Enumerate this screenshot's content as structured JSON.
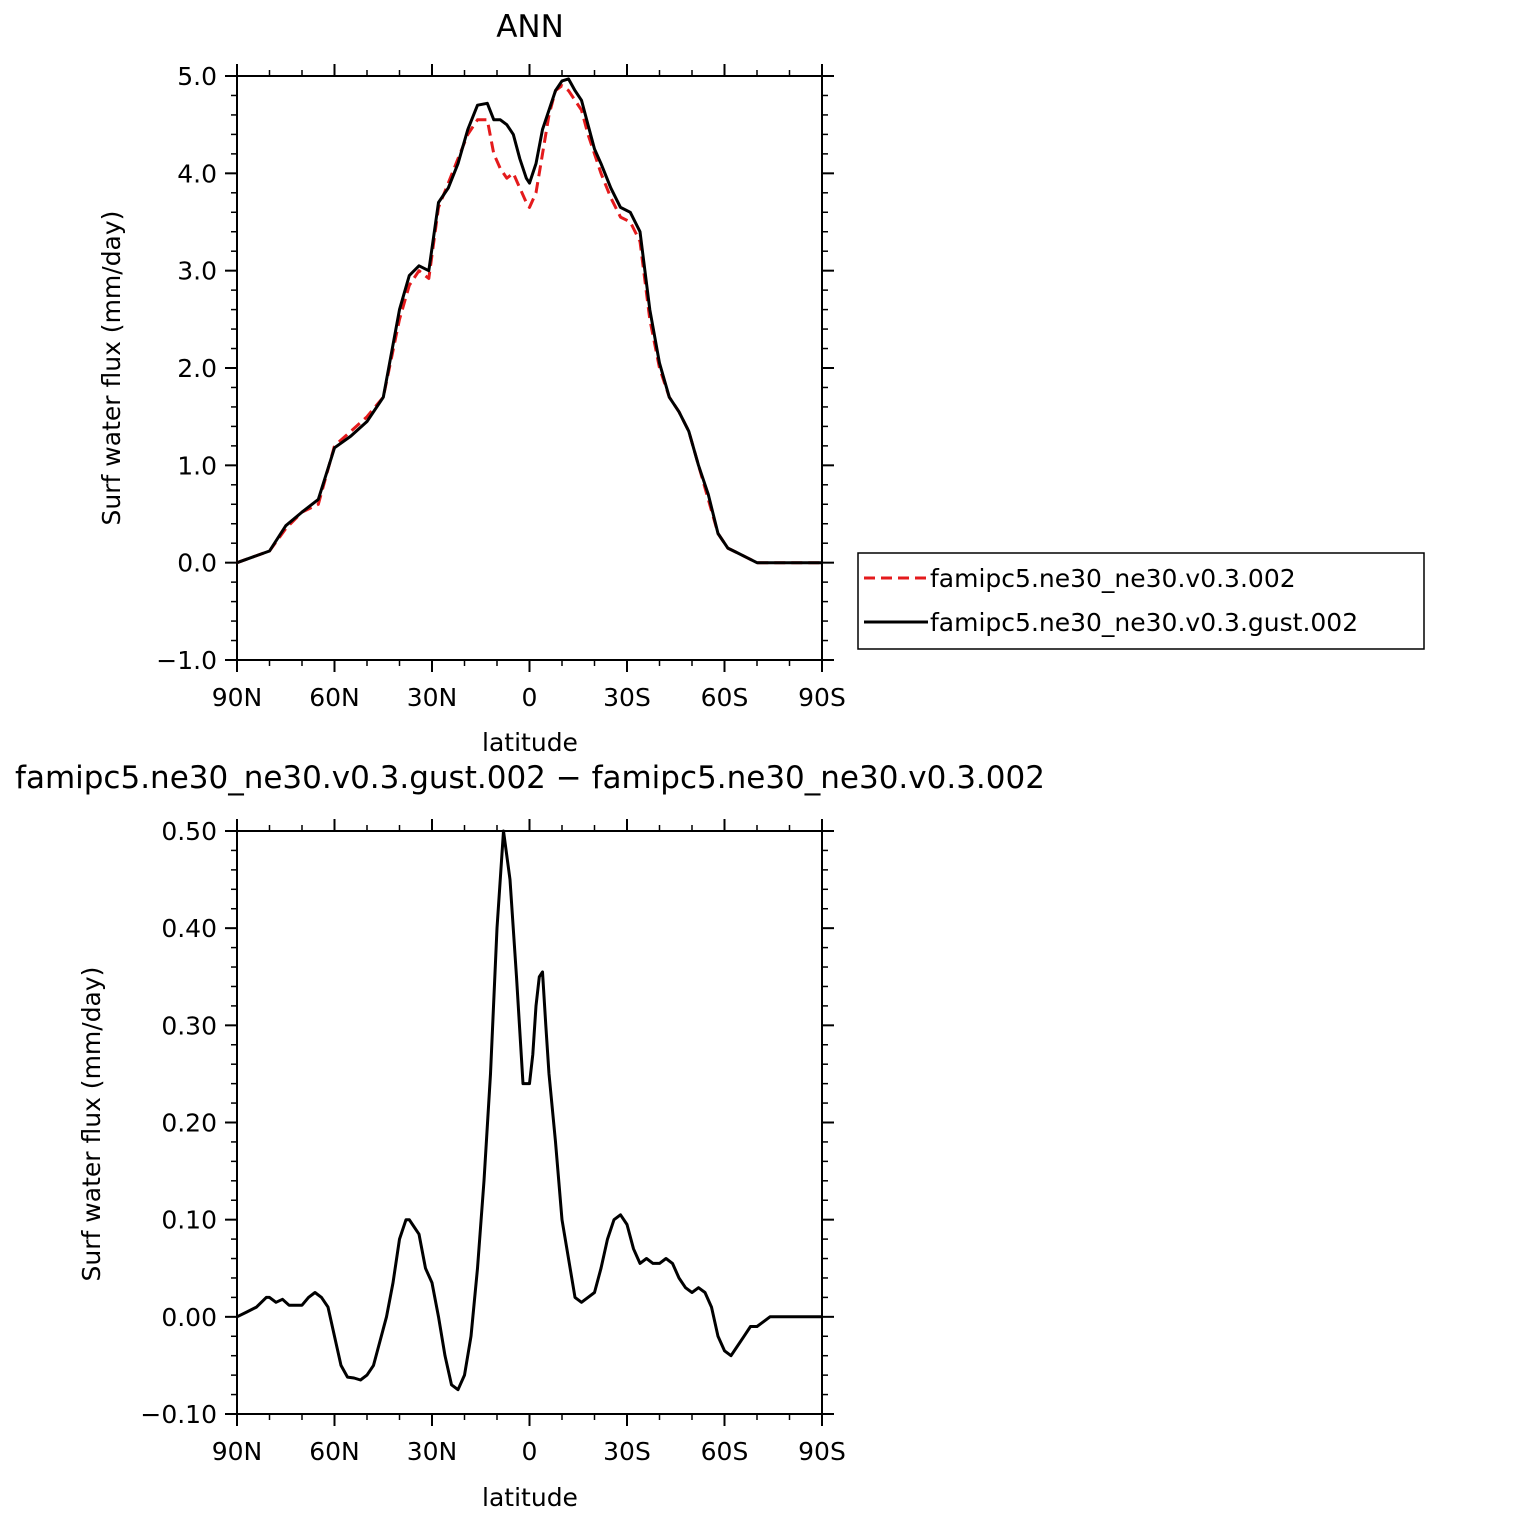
{
  "chart_data": [
    {
      "type": "line",
      "title": "ANN",
      "xlabel": "latitude",
      "ylabel": "Surf water flux (mm/day)",
      "xlim": [
        90,
        -90
      ],
      "ylim": [
        -1.0,
        5.0
      ],
      "x_tick_values": [
        90,
        60,
        30,
        0,
        -30,
        -60,
        -90
      ],
      "x_tick_labels": [
        "90N",
        "60N",
        "30N",
        "0",
        "30S",
        "60S",
        "90S"
      ],
      "y_tick_values": [
        -1.0,
        0.0,
        1.0,
        2.0,
        3.0,
        4.0,
        5.0
      ],
      "y_tick_labels": [
        "−1.0",
        "0.0",
        "1.0",
        "2.0",
        "3.0",
        "4.0",
        "5.0"
      ],
      "legend_position": "right",
      "series": [
        {
          "name": "famipc5.ne30_ne30.v0.3.002",
          "color": "#e41a1c",
          "dash": "dashed",
          "x": [
            90,
            85,
            80,
            75,
            70,
            65,
            60,
            55,
            50,
            45,
            40,
            37,
            34,
            31,
            28,
            25,
            22,
            19,
            16,
            13,
            11,
            9,
            7,
            5,
            3,
            1,
            0,
            -2,
            -4,
            -6,
            -8,
            -10,
            -12,
            -14,
            -16,
            -18,
            -20,
            -22,
            -25,
            -28,
            -31,
            -34,
            -37,
            -40,
            -43,
            -46,
            -49,
            -52,
            -55,
            -58,
            -61,
            -64,
            -67,
            -70,
            -73,
            -76,
            -79,
            -82,
            -85,
            -88,
            -90
          ],
          "y": [
            0.0,
            0.06,
            0.12,
            0.35,
            0.52,
            0.6,
            1.2,
            1.35,
            1.5,
            1.7,
            2.5,
            2.85,
            3.0,
            2.92,
            3.65,
            3.9,
            4.15,
            4.4,
            4.55,
            4.55,
            4.2,
            4.05,
            3.95,
            4.0,
            3.85,
            3.7,
            3.65,
            3.8,
            4.2,
            4.6,
            4.85,
            4.9,
            4.85,
            4.75,
            4.65,
            4.4,
            4.2,
            4.0,
            3.75,
            3.55,
            3.5,
            3.3,
            2.5,
            2.0,
            1.7,
            1.55,
            1.35,
            1.0,
            0.65,
            0.3,
            0.15,
            0.1,
            0.05,
            0.0,
            0.0,
            0.0,
            0.0,
            0.0,
            0.0,
            0.0,
            0.0
          ]
        },
        {
          "name": "famipc5.ne30_ne30.v0.3.gust.002",
          "color": "#000000",
          "dash": "solid",
          "x": [
            90,
            85,
            80,
            75,
            70,
            65,
            60,
            55,
            50,
            45,
            40,
            37,
            34,
            31,
            28,
            25,
            22,
            19,
            16,
            13,
            11,
            9,
            7,
            5,
            3,
            1,
            0,
            -2,
            -4,
            -6,
            -8,
            -10,
            -12,
            -14,
            -16,
            -18,
            -20,
            -22,
            -25,
            -28,
            -31,
            -34,
            -37,
            -40,
            -43,
            -46,
            -49,
            -52,
            -55,
            -58,
            -61,
            -64,
            -67,
            -70,
            -73,
            -76,
            -79,
            -82,
            -85,
            -88,
            -90
          ],
          "y": [
            0.0,
            0.06,
            0.12,
            0.38,
            0.52,
            0.65,
            1.18,
            1.3,
            1.45,
            1.7,
            2.6,
            2.95,
            3.05,
            3.0,
            3.7,
            3.85,
            4.1,
            4.45,
            4.7,
            4.72,
            4.55,
            4.55,
            4.5,
            4.4,
            4.15,
            3.95,
            3.9,
            4.1,
            4.45,
            4.65,
            4.85,
            4.95,
            4.97,
            4.85,
            4.75,
            4.5,
            4.25,
            4.1,
            3.85,
            3.65,
            3.6,
            3.4,
            2.6,
            2.05,
            1.7,
            1.55,
            1.35,
            1.0,
            0.7,
            0.3,
            0.15,
            0.1,
            0.05,
            0.0,
            0.0,
            0.0,
            0.0,
            0.0,
            0.0,
            0.0,
            0.0
          ]
        }
      ]
    },
    {
      "type": "line",
      "title": "famipc5.ne30_ne30.v0.3.gust.002 − famipc5.ne30_ne30.v0.3.002",
      "xlabel": "latitude",
      "ylabel": "Surf water flux (mm/day)",
      "xlim": [
        90,
        -90
      ],
      "ylim": [
        -0.1,
        0.5
      ],
      "x_tick_values": [
        90,
        60,
        30,
        0,
        -30,
        -60,
        -90
      ],
      "x_tick_labels": [
        "90N",
        "60N",
        "30N",
        "0",
        "30S",
        "60S",
        "90S"
      ],
      "y_tick_values": [
        -0.1,
        0.0,
        0.1,
        0.2,
        0.3,
        0.4,
        0.5
      ],
      "y_tick_labels": [
        "−0.10",
        "0.00",
        "0.10",
        "0.20",
        "0.30",
        "0.40",
        "0.50"
      ],
      "series": [
        {
          "color": "#000000",
          "dash": "solid",
          "x": [
            90,
            87,
            84,
            81,
            80,
            78,
            76,
            74,
            72,
            70,
            68,
            66,
            64,
            62,
            60,
            58,
            56,
            54,
            52,
            50,
            48,
            46,
            44,
            42,
            40,
            38,
            37,
            36,
            34,
            32,
            30,
            28,
            26,
            24,
            22,
            20,
            18,
            16,
            14,
            12,
            10,
            8,
            6,
            4,
            2,
            0,
            -1,
            -2,
            -3,
            -4,
            -5,
            -6,
            -8,
            -10,
            -12,
            -14,
            -16,
            -18,
            -20,
            -22,
            -24,
            -26,
            -28,
            -30,
            -32,
            -34,
            -36,
            -38,
            -40,
            -42,
            -44,
            -46,
            -48,
            -50,
            -52,
            -54,
            -56,
            -58,
            -60,
            -62,
            -64,
            -66,
            -68,
            -70,
            -72,
            -74,
            -76,
            -80,
            -84,
            -88,
            -90
          ],
          "y": [
            0.0,
            0.005,
            0.01,
            0.02,
            0.02,
            0.015,
            0.018,
            0.012,
            0.012,
            0.012,
            0.02,
            0.025,
            0.02,
            0.01,
            -0.02,
            -0.05,
            -0.062,
            -0.063,
            -0.065,
            -0.06,
            -0.05,
            -0.025,
            0.0,
            0.035,
            0.08,
            0.1,
            0.1,
            0.095,
            0.085,
            0.05,
            0.035,
            0.0,
            -0.04,
            -0.07,
            -0.075,
            -0.06,
            -0.02,
            0.05,
            0.14,
            0.25,
            0.4,
            0.5,
            0.45,
            0.35,
            0.24,
            0.24,
            0.27,
            0.32,
            0.35,
            0.355,
            0.3,
            0.25,
            0.18,
            0.1,
            0.06,
            0.02,
            0.015,
            0.02,
            0.025,
            0.05,
            0.08,
            0.1,
            0.105,
            0.095,
            0.07,
            0.055,
            0.06,
            0.055,
            0.055,
            0.06,
            0.055,
            0.04,
            0.03,
            0.025,
            0.03,
            0.025,
            0.01,
            -0.02,
            -0.035,
            -0.04,
            -0.03,
            -0.02,
            -0.01,
            -0.01,
            -0.005,
            0.0,
            0.0,
            0.0,
            0.0,
            0.0,
            0.0
          ]
        }
      ]
    }
  ]
}
